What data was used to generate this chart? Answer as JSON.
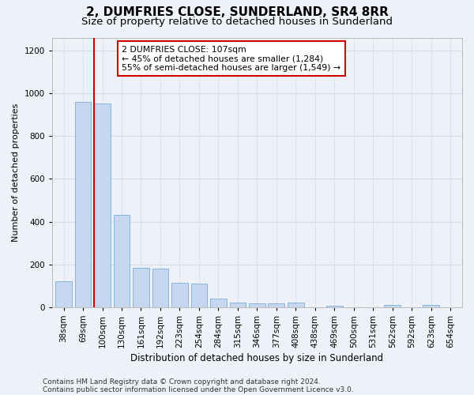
{
  "title": "2, DUMFRIES CLOSE, SUNDERLAND, SR4 8RR",
  "subtitle": "Size of property relative to detached houses in Sunderland",
  "xlabel": "Distribution of detached houses by size in Sunderland",
  "ylabel": "Number of detached properties",
  "categories": [
    "38sqm",
    "69sqm",
    "100sqm",
    "130sqm",
    "161sqm",
    "192sqm",
    "223sqm",
    "254sqm",
    "284sqm",
    "315sqm",
    "346sqm",
    "377sqm",
    "408sqm",
    "438sqm",
    "469sqm",
    "500sqm",
    "531sqm",
    "562sqm",
    "592sqm",
    "623sqm",
    "654sqm"
  ],
  "values": [
    120,
    960,
    950,
    430,
    185,
    182,
    113,
    110,
    40,
    22,
    18,
    18,
    20,
    0,
    8,
    0,
    0,
    10,
    0,
    10,
    0
  ],
  "bar_color": "#c5d8ef",
  "bar_edge_color": "#7aadd4",
  "highlight_index": 2,
  "highlight_color": "#cc0000",
  "annotation_text": "2 DUMFRIES CLOSE: 107sqm\n← 45% of detached houses are smaller (1,284)\n55% of semi-detached houses are larger (1,549) →",
  "annotation_box_color": "#ffffff",
  "annotation_box_edge": "#cc0000",
  "ylim": [
    0,
    1260
  ],
  "yticks": [
    0,
    200,
    400,
    600,
    800,
    1000,
    1200
  ],
  "grid_color": "#d5dce8",
  "background_color": "#eef2f8",
  "footer": "Contains HM Land Registry data © Crown copyright and database right 2024.\nContains public sector information licensed under the Open Government Licence v3.0.",
  "title_fontsize": 11,
  "subtitle_fontsize": 9.5,
  "xlabel_fontsize": 8.5,
  "ylabel_fontsize": 8,
  "tick_fontsize": 7.5,
  "footer_fontsize": 6.5
}
